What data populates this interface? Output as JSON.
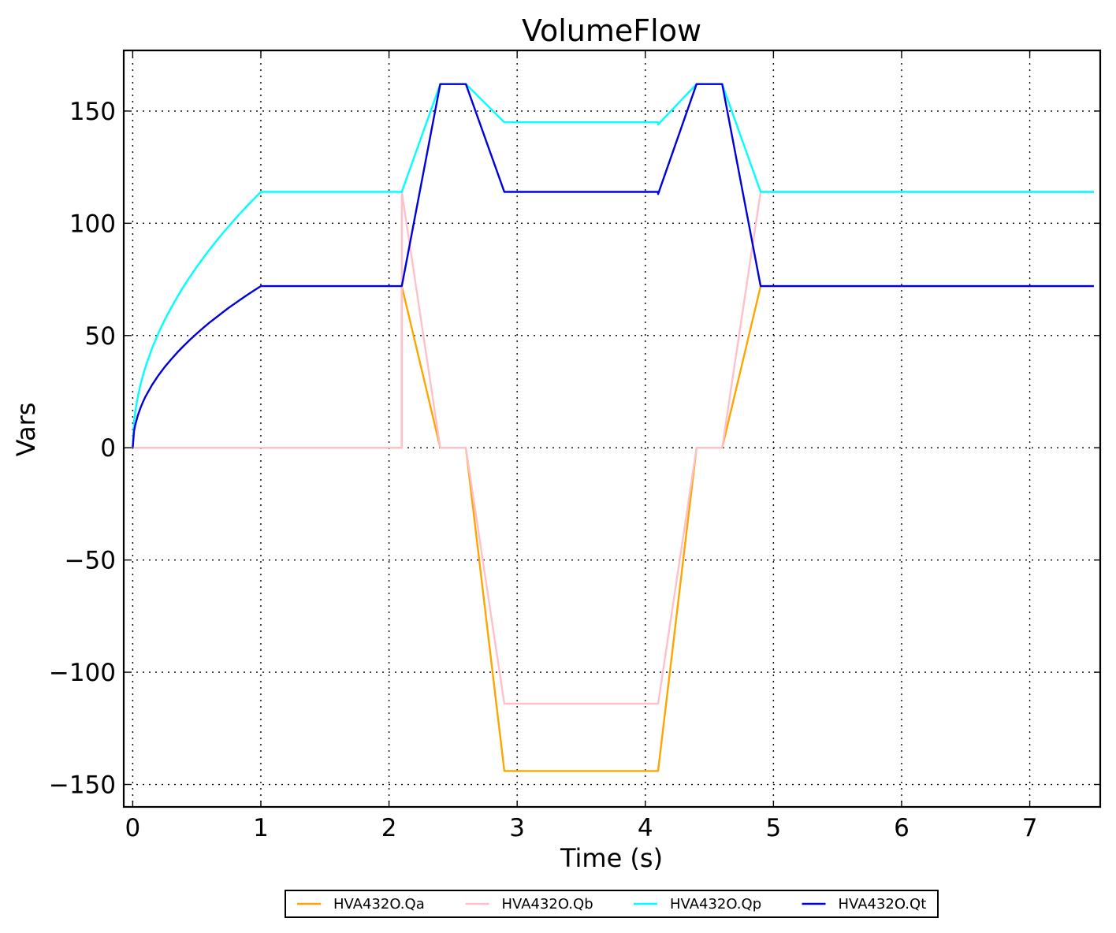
{
  "chart_data": {
    "type": "line",
    "title": "VolumeFlow",
    "xlabel": "Time (s)",
    "ylabel": "Vars",
    "xlim": [
      -0.07,
      7.55
    ],
    "ylim": [
      -160,
      177
    ],
    "x_ticks": [
      0,
      1,
      2,
      3,
      4,
      5,
      6,
      7
    ],
    "x_tick_labels": [
      "0",
      "1",
      "2",
      "3",
      "4",
      "5",
      "6",
      "7"
    ],
    "y_ticks": [
      -150,
      -100,
      -50,
      0,
      50,
      100,
      150
    ],
    "y_tick_labels": [
      "−150",
      "−100",
      "−50",
      "0",
      "50",
      "100",
      "150"
    ],
    "grid": true,
    "legend_position": "bottom-center, below axes",
    "series": [
      {
        "name": "HVA432O.Qa",
        "color": "#ffa500",
        "points": [
          [
            0,
            0
          ],
          [
            2.1,
            0
          ],
          [
            2.1,
            72
          ],
          [
            2.4,
            0
          ],
          [
            2.6,
            0
          ],
          [
            2.9,
            -144
          ],
          [
            4.1,
            -144
          ],
          [
            4.4,
            0
          ],
          [
            4.6,
            0
          ],
          [
            4.9,
            72
          ],
          [
            7.5,
            72
          ]
        ]
      },
      {
        "name": "HVA432O.Qb",
        "color": "#ffc0cb",
        "points": [
          [
            0,
            0
          ],
          [
            2.1,
            0
          ],
          [
            2.1,
            114
          ],
          [
            2.4,
            0
          ],
          [
            2.6,
            0
          ],
          [
            2.9,
            -114
          ],
          [
            4.1,
            -114
          ],
          [
            4.4,
            0
          ],
          [
            4.6,
            0
          ],
          [
            4.9,
            114
          ],
          [
            7.5,
            114
          ]
        ]
      },
      {
        "name": "HVA432O.Qp",
        "color": "#00ffff",
        "points": [
          [
            0,
            0
          ],
          [
            0.01,
            11.4
          ],
          [
            0.02,
            16.1
          ],
          [
            0.04,
            22.8
          ],
          [
            0.06,
            27.9
          ],
          [
            0.08,
            32.2
          ],
          [
            0.1,
            36.0
          ],
          [
            0.15,
            44.2
          ],
          [
            0.2,
            51.0
          ],
          [
            0.25,
            57.0
          ],
          [
            0.3,
            62.4
          ],
          [
            0.35,
            67.4
          ],
          [
            0.4,
            72.1
          ],
          [
            0.45,
            76.5
          ],
          [
            0.5,
            80.6
          ],
          [
            0.55,
            84.5
          ],
          [
            0.6,
            88.3
          ],
          [
            0.65,
            91.9
          ],
          [
            0.7,
            95.4
          ],
          [
            0.75,
            98.7
          ],
          [
            0.8,
            102.0
          ],
          [
            0.85,
            105.1
          ],
          [
            0.9,
            108.2
          ],
          [
            0.95,
            111.1
          ],
          [
            1.0,
            114
          ],
          [
            2.1,
            114
          ],
          [
            2.4,
            162
          ],
          [
            2.6,
            162
          ],
          [
            2.9,
            145
          ],
          [
            4.1,
            145
          ],
          [
            4.1,
            144
          ],
          [
            4.4,
            162
          ],
          [
            4.6,
            162
          ],
          [
            4.9,
            114
          ],
          [
            7.5,
            114
          ]
        ]
      },
      {
        "name": "HVA432O.Qt",
        "color": "#0000dd",
        "points": [
          [
            0,
            0
          ],
          [
            0.01,
            7.2
          ],
          [
            0.02,
            10.2
          ],
          [
            0.04,
            14.4
          ],
          [
            0.06,
            17.6
          ],
          [
            0.08,
            20.4
          ],
          [
            0.1,
            22.8
          ],
          [
            0.15,
            27.9
          ],
          [
            0.2,
            32.2
          ],
          [
            0.25,
            36.0
          ],
          [
            0.3,
            39.4
          ],
          [
            0.35,
            42.6
          ],
          [
            0.4,
            45.5
          ],
          [
            0.45,
            48.3
          ],
          [
            0.5,
            50.9
          ],
          [
            0.55,
            53.4
          ],
          [
            0.6,
            55.8
          ],
          [
            0.65,
            58.0
          ],
          [
            0.7,
            60.2
          ],
          [
            0.75,
            62.4
          ],
          [
            0.8,
            64.4
          ],
          [
            0.85,
            66.4
          ],
          [
            0.9,
            68.3
          ],
          [
            0.95,
            70.2
          ],
          [
            1.0,
            72
          ],
          [
            2.1,
            72
          ],
          [
            2.4,
            162
          ],
          [
            2.6,
            162
          ],
          [
            2.9,
            114
          ],
          [
            4.1,
            114
          ],
          [
            4.1,
            113
          ],
          [
            4.4,
            162
          ],
          [
            4.6,
            162
          ],
          [
            4.9,
            72
          ],
          [
            7.5,
            72
          ]
        ]
      }
    ]
  }
}
